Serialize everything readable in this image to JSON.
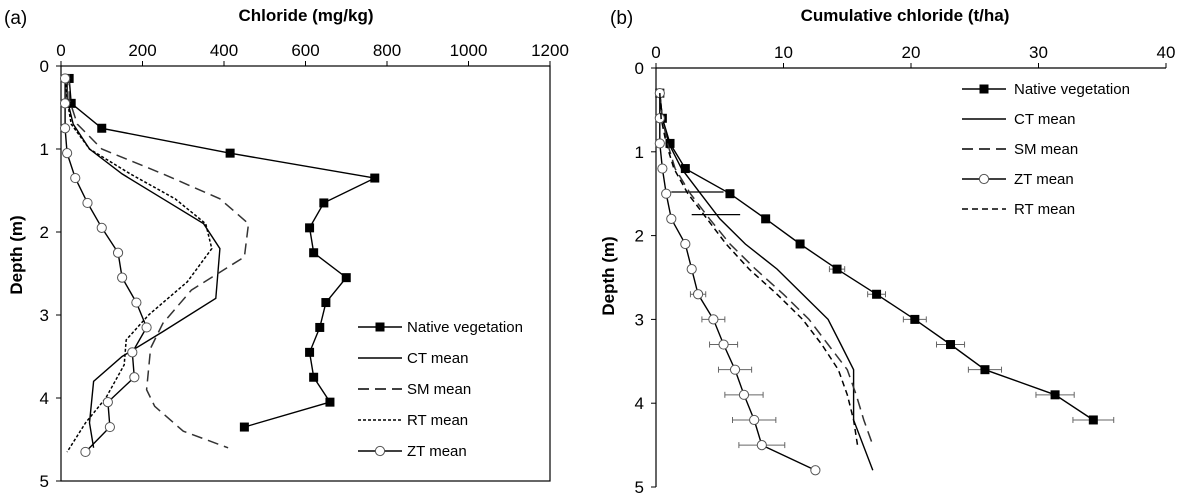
{
  "chart_data": [
    {
      "type": "line",
      "panel_label": "(a)",
      "xlabel": "Chloride (mg/kg)",
      "ylabel": "Depth (m)",
      "xlim": [
        0,
        1200
      ],
      "ylim": [
        0,
        5
      ],
      "x_axis_position": "top",
      "y_inverted": true,
      "xticks": [
        "0",
        "200",
        "400",
        "600",
        "800",
        "1000",
        "1200"
      ],
      "yticks": [
        "0",
        "1",
        "2",
        "3",
        "4",
        "5"
      ],
      "legend_position": "bottom-right",
      "series": [
        {
          "name": "Native vegetation",
          "style": "line-square",
          "x": [
            20,
            25,
            100,
            415,
            770,
            645,
            610,
            620,
            700,
            650,
            635,
            610,
            620,
            660,
            450
          ],
          "y": [
            0.15,
            0.45,
            0.75,
            1.05,
            1.35,
            1.65,
            1.95,
            2.25,
            2.55,
            2.85,
            3.15,
            3.45,
            3.75,
            4.05,
            4.35
          ]
        },
        {
          "name": "CT mean",
          "style": "solid",
          "x": [
            15,
            15,
            30,
            70,
            150,
            250,
            350,
            390,
            380,
            250,
            150,
            80,
            70,
            80
          ],
          "y": [
            0.1,
            0.4,
            0.7,
            1.0,
            1.3,
            1.6,
            1.9,
            2.2,
            2.8,
            3.2,
            3.5,
            3.8,
            4.3,
            4.6
          ]
        },
        {
          "name": "SM mean",
          "style": "dashed",
          "x": [
            20,
            20,
            40,
            100,
            250,
            390,
            460,
            450,
            320,
            250,
            220,
            210,
            230,
            300,
            410
          ],
          "y": [
            0.1,
            0.4,
            0.7,
            1.0,
            1.3,
            1.6,
            1.9,
            2.3,
            2.7,
            3.1,
            3.4,
            3.9,
            4.1,
            4.4,
            4.6
          ]
        },
        {
          "name": "RT mean",
          "style": "dotted",
          "x": [
            10,
            15,
            25,
            70,
            170,
            280,
            355,
            370,
            310,
            215,
            160,
            155,
            110,
            60,
            15
          ],
          "y": [
            0.1,
            0.4,
            0.7,
            1.0,
            1.3,
            1.6,
            1.9,
            2.2,
            2.6,
            3.0,
            3.3,
            3.6,
            4.0,
            4.3,
            4.65
          ]
        },
        {
          "name": "ZT mean",
          "style": "line-circle",
          "x": [
            10,
            10,
            10,
            15,
            35,
            65,
            100,
            140,
            150,
            185,
            210,
            175,
            180,
            115,
            120,
            60
          ],
          "y": [
            0.15,
            0.45,
            0.75,
            1.05,
            1.35,
            1.65,
            1.95,
            2.25,
            2.55,
            2.85,
            3.15,
            3.45,
            3.75,
            4.05,
            4.35,
            4.65
          ]
        }
      ]
    },
    {
      "type": "line",
      "panel_label": "(b)",
      "xlabel": "Cumulative chloride (t/ha)",
      "ylabel": "Depth (m)",
      "xlim": [
        0,
        40
      ],
      "ylim": [
        0,
        5
      ],
      "x_axis_position": "top",
      "y_inverted": true,
      "xticks": [
        "0",
        "10",
        "20",
        "30",
        "40"
      ],
      "yticks": [
        "0",
        "1",
        "2",
        "3",
        "4",
        "5"
      ],
      "legend_position": "top-right",
      "series": [
        {
          "name": "Native vegetation",
          "style": "line-square",
          "x": [
            0.3,
            0.5,
            1.1,
            2.3,
            5.8,
            8.6,
            11.3,
            14.2,
            17.3,
            20.3,
            23.1,
            25.8,
            31.3,
            34.3
          ],
          "y": [
            0.3,
            0.6,
            0.9,
            1.2,
            1.5,
            1.8,
            2.1,
            2.4,
            2.7,
            3.0,
            3.3,
            3.6,
            3.9,
            4.2
          ],
          "xerr": [
            0,
            0,
            0,
            0,
            0,
            0,
            0,
            0.6,
            0.7,
            0.9,
            1.1,
            1.3,
            1.5,
            1.6
          ]
        },
        {
          "name": "CT mean",
          "style": "solid",
          "x": [
            0.3,
            0.5,
            1.0,
            2.0,
            3.5,
            5.0,
            7.0,
            9.5,
            11.5,
            13.5,
            14.5,
            15.5,
            15.5,
            17.0
          ],
          "y": [
            0.3,
            0.6,
            0.9,
            1.2,
            1.5,
            1.8,
            2.1,
            2.4,
            2.7,
            3.0,
            3.3,
            3.6,
            4.2,
            4.8
          ]
        },
        {
          "name": "SM mean",
          "style": "dashed",
          "x": [
            0.3,
            0.5,
            0.9,
            1.5,
            2.7,
            4.2,
            5.8,
            7.8,
            10.0,
            12.0,
            13.5,
            15.0,
            15.7,
            16.3,
            17.0
          ],
          "y": [
            0.3,
            0.6,
            0.9,
            1.2,
            1.5,
            1.8,
            2.1,
            2.4,
            2.7,
            3.0,
            3.3,
            3.6,
            3.9,
            4.2,
            4.5
          ]
        },
        {
          "name": "ZT mean",
          "style": "line-circle",
          "x": [
            0.3,
            0.3,
            0.3,
            0.5,
            0.8,
            1.2,
            2.3,
            2.8,
            3.3,
            4.5,
            5.3,
            6.2,
            6.9,
            7.7,
            8.3,
            12.5
          ],
          "y": [
            0.3,
            0.6,
            0.9,
            1.2,
            1.5,
            1.8,
            2.1,
            2.4,
            2.7,
            3.0,
            3.3,
            3.6,
            3.9,
            4.2,
            4.5,
            4.8
          ],
          "xerr": [
            0,
            0,
            0,
            0,
            0,
            0,
            0,
            0,
            0.6,
            0.9,
            1.1,
            1.3,
            1.5,
            1.7,
            1.8,
            0
          ]
        },
        {
          "name": "RT mean",
          "style": "dotted-dashed",
          "x": [
            0.3,
            0.4,
            0.8,
            1.4,
            2.5,
            4.0,
            5.5,
            7.3,
            9.5,
            11.5,
            13.0,
            14.3,
            15.0,
            15.5,
            15.8
          ],
          "y": [
            0.3,
            0.6,
            0.9,
            1.2,
            1.5,
            1.8,
            2.1,
            2.4,
            2.7,
            3.0,
            3.3,
            3.6,
            3.9,
            4.2,
            4.5
          ]
        }
      ],
      "extra_bars": [
        {
          "x": [
            1.2,
            5.3
          ],
          "y": 1.48
        },
        {
          "x": [
            2.8,
            6.6
          ],
          "y": 1.75
        }
      ]
    }
  ]
}
